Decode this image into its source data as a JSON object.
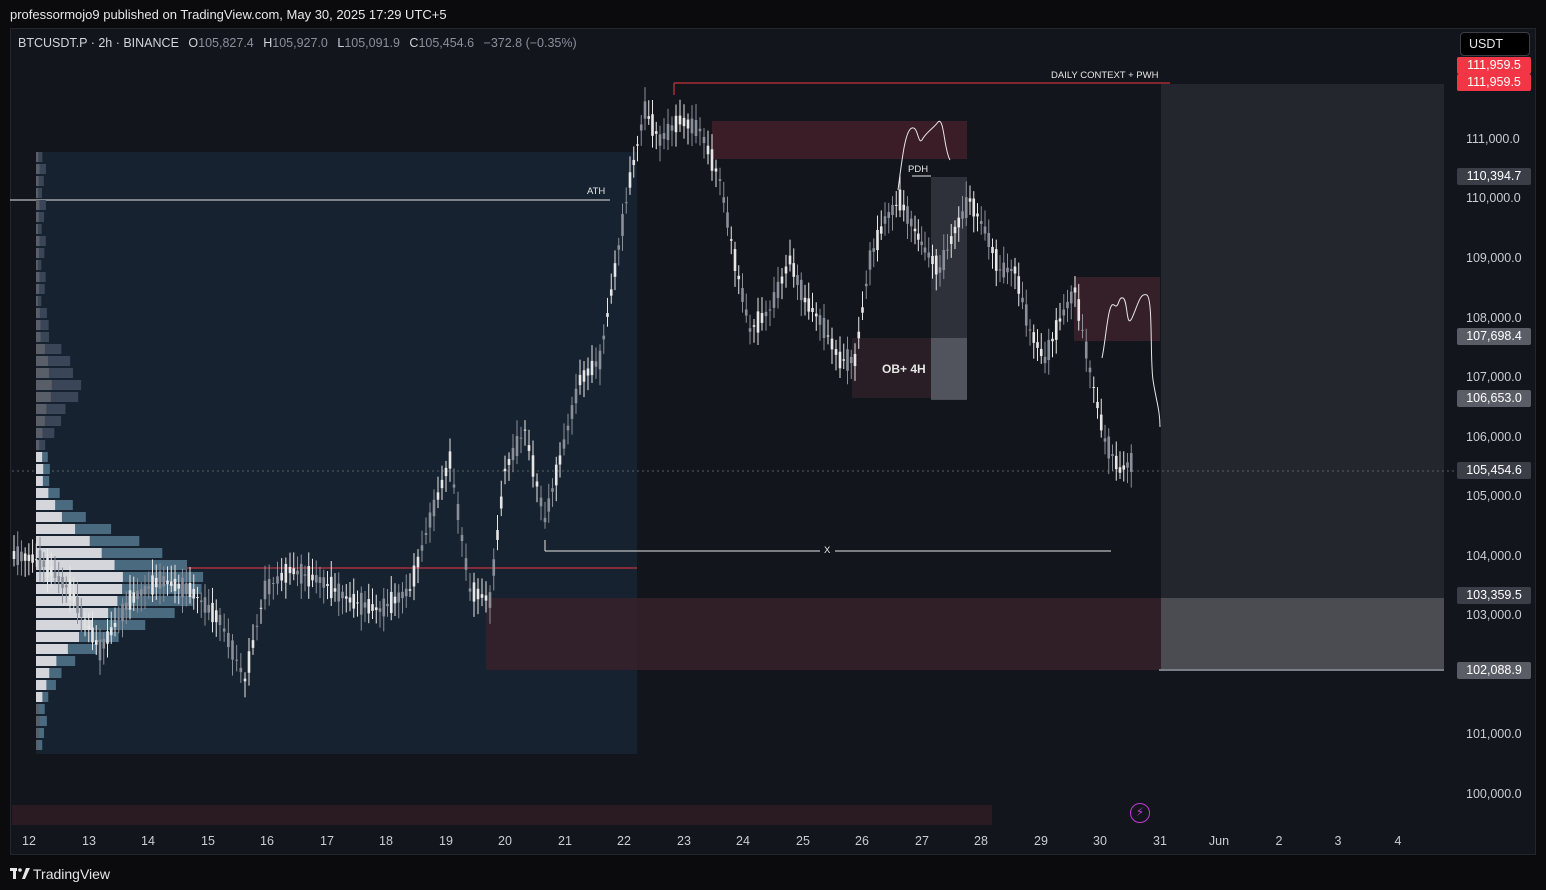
{
  "header": {
    "publisher_line": "professormojo9 published on TradingView.com, May 30, 2025 17:29 UTC+5"
  },
  "symbol": {
    "name": "BTCUSDT.P · 2h · BINANCE",
    "o_label": "O",
    "o_value": "105,827.4",
    "h_label": "H",
    "h_value": "105,927.0",
    "l_label": "L",
    "l_value": "105,091.9",
    "c_label": "C",
    "c_value": "105,454.6",
    "change": "−372.8 (−0.35%)"
  },
  "currency_button": "USDT",
  "price_axis": {
    "ticks": [
      "111,000.0",
      "110,000.0",
      "109,000.0",
      "108,000.0",
      "107,000.0",
      "106,000.0",
      "105,000.0",
      "104,000.0",
      "103,000.0",
      "101,000.0",
      "100,000.0"
    ]
  },
  "price_tags": [
    {
      "label": "111,959.5",
      "color": "#f23645"
    },
    {
      "label": "111,959.5",
      "color": "#f23645"
    },
    {
      "label": "110,394.7",
      "color": "#3b3e47"
    },
    {
      "label": "107,698.4",
      "color": "#5a5d66"
    },
    {
      "label": "106,653.0",
      "color": "#5a5d66"
    },
    {
      "label": "105,454.6",
      "color": "#3b3e47"
    },
    {
      "label": "103,359.5",
      "color": "#3b3e47"
    },
    {
      "label": "102,088.9",
      "color": "#5a5d66"
    }
  ],
  "time_axis": {
    "labels": [
      "12",
      "13",
      "14",
      "15",
      "16",
      "17",
      "18",
      "19",
      "20",
      "21",
      "22",
      "23",
      "24",
      "25",
      "26",
      "27",
      "28",
      "29",
      "30",
      "31",
      "Jun",
      "2",
      "3",
      "4"
    ]
  },
  "annotations": {
    "daily_context": "DAILY CONTEXT + PWH",
    "ath": "ATH",
    "pdh": "PDH",
    "x_mark": "X",
    "ob_label": "OB+ 4H"
  },
  "footer": {
    "brand": "TradingView"
  },
  "colors": {
    "background": "#13151c",
    "up_candle": "#e6e6e6",
    "down_candle": "#8a8f99",
    "red_zone": "#3a1c24",
    "resistance_line": "#f23645"
  }
}
